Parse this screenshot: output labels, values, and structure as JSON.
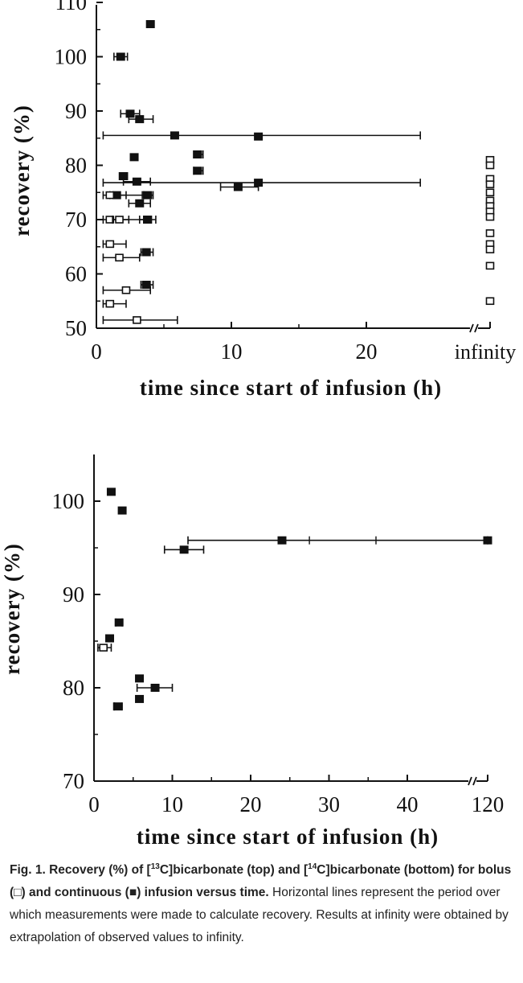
{
  "chart_data": [
    {
      "type": "scatter",
      "xlabel": "time since start of infusion (h)",
      "ylabel": "recovery (%)",
      "xticks": [
        "0",
        "10",
        "20",
        "infinity"
      ],
      "yticks": [
        "50",
        "60",
        "70",
        "80",
        "90",
        "100",
        "110"
      ],
      "xlim": [
        0,
        24
      ],
      "ylim": [
        50,
        110
      ],
      "axis_break": true,
      "infinity_points_note": "open squares plotted at x = infinity",
      "series": [
        {
          "name": "continuous",
          "marker": "filled-square",
          "points": [
            {
              "x": 4.0,
              "y": 106,
              "xmin": null,
              "xmax": null
            },
            {
              "x": 1.8,
              "y": 100,
              "xmin": 1.3,
              "xmax": 2.3
            },
            {
              "x": 2.5,
              "y": 89.5,
              "xmin": 1.8,
              "xmax": 3.2
            },
            {
              "x": 3.2,
              "y": 88.5,
              "xmin": 2.4,
              "xmax": 4.2
            },
            {
              "x": 5.8,
              "y": 85.5,
              "xmin": 0.5,
              "xmax": 24.0
            },
            {
              "x": 12.0,
              "y": 85.3,
              "xmin": null,
              "xmax": null
            },
            {
              "x": 2.8,
              "y": 81.5,
              "xmin": null,
              "xmax": null
            },
            {
              "x": 7.5,
              "y": 82.0,
              "xmin": 7.2,
              "xmax": 7.9
            },
            {
              "x": 7.5,
              "y": 79.0,
              "xmin": 7.2,
              "xmax": 7.9
            },
            {
              "x": 2.0,
              "y": 78.0,
              "xmin": 1.7,
              "xmax": 2.3
            },
            {
              "x": 3.0,
              "y": 77.0,
              "xmin": 2.0,
              "xmax": 4.0
            },
            {
              "x": 12.0,
              "y": 76.8,
              "xmin": 0.5,
              "xmax": 24.0
            },
            {
              "x": 10.5,
              "y": 76.0,
              "xmin": 9.2,
              "xmax": 12.0
            },
            {
              "x": 1.5,
              "y": 74.5,
              "xmin": 1.0,
              "xmax": 2.2
            },
            {
              "x": 3.8,
              "y": 74.5,
              "xmin": 3.4,
              "xmax": 4.2
            },
            {
              "x": 3.2,
              "y": 73.0,
              "xmin": 2.4,
              "xmax": 4.0
            },
            {
              "x": 3.8,
              "y": 70.0,
              "xmin": 3.2,
              "xmax": 4.4
            },
            {
              "x": 3.7,
              "y": 64.0,
              "xmin": 3.3,
              "xmax": 4.2
            },
            {
              "x": 3.7,
              "y": 58.0,
              "xmin": 3.3,
              "xmax": 4.2
            }
          ]
        },
        {
          "name": "bolus",
          "marker": "open-square",
          "points": [
            {
              "x": 1.0,
              "y": 74.5,
              "xmin": 0.5,
              "xmax": 3.5
            },
            {
              "x": 1.0,
              "y": 70.0,
              "xmin": 0.5,
              "xmax": 3.5
            },
            {
              "x": 1.7,
              "y": 70.0,
              "xmin": 1.2,
              "xmax": 2.4
            },
            {
              "x": 1.0,
              "y": 65.5,
              "xmin": 0.5,
              "xmax": 2.2
            },
            {
              "x": 1.7,
              "y": 63.0,
              "xmin": 0.5,
              "xmax": 3.2
            },
            {
              "x": 2.2,
              "y": 57.0,
              "xmin": 0.5,
              "xmax": 4.0
            },
            {
              "x": 1.0,
              "y": 54.5,
              "xmin": 0.5,
              "xmax": 2.2
            },
            {
              "x": 3.0,
              "y": 51.5,
              "xmin": 0.5,
              "xmax": 6.0
            },
            {
              "x": "infinity",
              "y": 81.0
            },
            {
              "x": "infinity",
              "y": 80.0
            },
            {
              "x": "infinity",
              "y": 77.5
            },
            {
              "x": "infinity",
              "y": 76.5
            },
            {
              "x": "infinity",
              "y": 75.0
            },
            {
              "x": "infinity",
              "y": 73.5
            },
            {
              "x": "infinity",
              "y": 72.5
            },
            {
              "x": "infinity",
              "y": 71.5
            },
            {
              "x": "infinity",
              "y": 70.5
            },
            {
              "x": "infinity",
              "y": 67.5
            },
            {
              "x": "infinity",
              "y": 65.5
            },
            {
              "x": "infinity",
              "y": 64.5
            },
            {
              "x": "infinity",
              "y": 61.5
            },
            {
              "x": "infinity",
              "y": 55.0
            }
          ]
        }
      ]
    },
    {
      "type": "scatter",
      "xlabel": "time since start of infusion (h)",
      "ylabel": "recovery (%)",
      "xticks": [
        "0",
        "10",
        "20",
        "30",
        "40",
        "120"
      ],
      "yticks": [
        "70",
        "80",
        "90",
        "100"
      ],
      "xlim": [
        0,
        48
      ],
      "ylim": [
        70,
        105
      ],
      "axis_break": true,
      "series": [
        {
          "name": "continuous",
          "marker": "filled-square",
          "points": [
            {
              "x": 2.2,
              "y": 101.0,
              "xmin": null,
              "xmax": null
            },
            {
              "x": 3.6,
              "y": 99.0,
              "xmin": null,
              "xmax": null
            },
            {
              "x": 24.0,
              "y": 95.8,
              "xmin": 12.0,
              "xmax": 120.0
            },
            {
              "x": 120.0,
              "y": 95.8,
              "xmin": null,
              "xmax": null
            },
            {
              "x": 11.5,
              "y": 94.8,
              "xmin": 9.0,
              "xmax": 14.0
            },
            {
              "x": 3.2,
              "y": 87.0,
              "xmin": 2.8,
              "xmax": 3.6
            },
            {
              "x": 2.0,
              "y": 85.3,
              "xmin": 1.6,
              "xmax": 2.4
            },
            {
              "x": 5.8,
              "y": 81.0,
              "xmin": null,
              "xmax": null
            },
            {
              "x": 7.8,
              "y": 80.0,
              "xmin": 5.5,
              "xmax": 10.0
            },
            {
              "x": 5.8,
              "y": 78.8,
              "xmin": null,
              "xmax": null
            },
            {
              "x": 3.0,
              "y": 78.0,
              "xmin": 2.6,
              "xmax": 3.6
            }
          ]
        },
        {
          "name": "bolus",
          "marker": "open-square",
          "points": [
            {
              "x": 1.2,
              "y": 84.3,
              "xmin": 0.5,
              "xmax": 2.2
            }
          ]
        }
      ]
    }
  ],
  "caption": {
    "fig_label": "Fig. 1.",
    "title_parts": {
      "a": "Recovery (%) of [",
      "sup1": "13",
      "b": "C]bicarbonate (top) and [",
      "sup2": "14",
      "c": "C]bicarbonate (bottom) for bolus (□) and continuous (■) infusion versus time."
    },
    "body": "Horizontal lines represent the period over which measurements were made to calculate recovery. Results at infinity were obtained by extrapolation of observed values to infinity."
  }
}
